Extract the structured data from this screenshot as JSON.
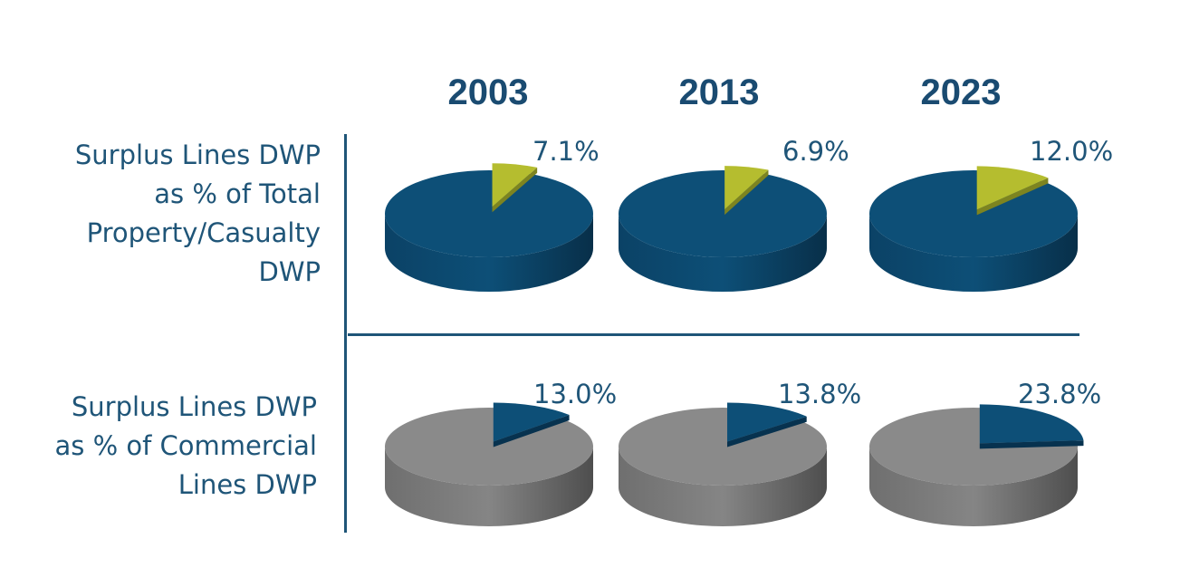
{
  "chart_data": {
    "type": "pie",
    "years": [
      "2003",
      "2013",
      "2023"
    ],
    "rows": [
      {
        "label": "Surplus Lines DWP\nas % of Total\nProperty/Casualty\nDWP",
        "base_color": "#0d4f77",
        "highlight_color": "#b5bd2f",
        "values": [
          7.1,
          6.9,
          12.0
        ],
        "value_labels": [
          "7.1%",
          "6.9%",
          "12.0%"
        ]
      },
      {
        "label": "Surplus Lines DWP\nas % of Commercial\nLines DWP",
        "base_color": "#8a8a8a",
        "highlight_color": "#0d4f77",
        "values": [
          13.0,
          13.8,
          23.8
        ],
        "value_labels": [
          "13.0%",
          "13.8%",
          "23.8%"
        ]
      }
    ]
  }
}
